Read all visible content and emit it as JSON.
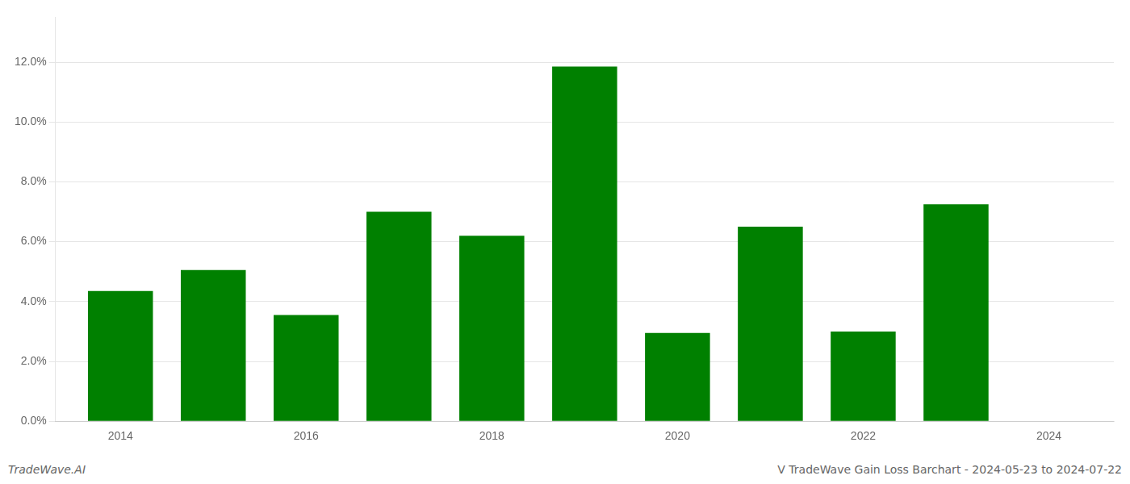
{
  "chart_data": {
    "type": "bar",
    "title": "V TradeWave Gain Loss Barchart - 2024-05-23 to 2024-07-22",
    "annotations": [
      "TradeWave.AI"
    ],
    "x": [
      2014,
      2015,
      2016,
      2017,
      2018,
      2019,
      2020,
      2021,
      2022,
      2023
    ],
    "values": [
      0.0435,
      0.0505,
      0.0355,
      0.07,
      0.062,
      0.1185,
      0.0295,
      0.065,
      0.03,
      0.0725
    ],
    "color": "#008000",
    "xlim": [
      2013.3,
      2024.7
    ],
    "xticks": [
      2014,
      2016,
      2018,
      2020,
      2022,
      2024
    ],
    "ylim": [
      0,
      0.135
    ],
    "yticks": [
      {
        "value": 0,
        "label": "0.0%"
      },
      {
        "value": 0.02,
        "label": "2.0%"
      },
      {
        "value": 0.04,
        "label": "4.0%"
      },
      {
        "value": 0.06,
        "label": "6.0%"
      },
      {
        "value": 0.08,
        "label": "8.0%"
      },
      {
        "value": 0.1,
        "label": "10.0%"
      },
      {
        "value": 0.12,
        "label": "12.0%"
      }
    ],
    "grid": true
  }
}
